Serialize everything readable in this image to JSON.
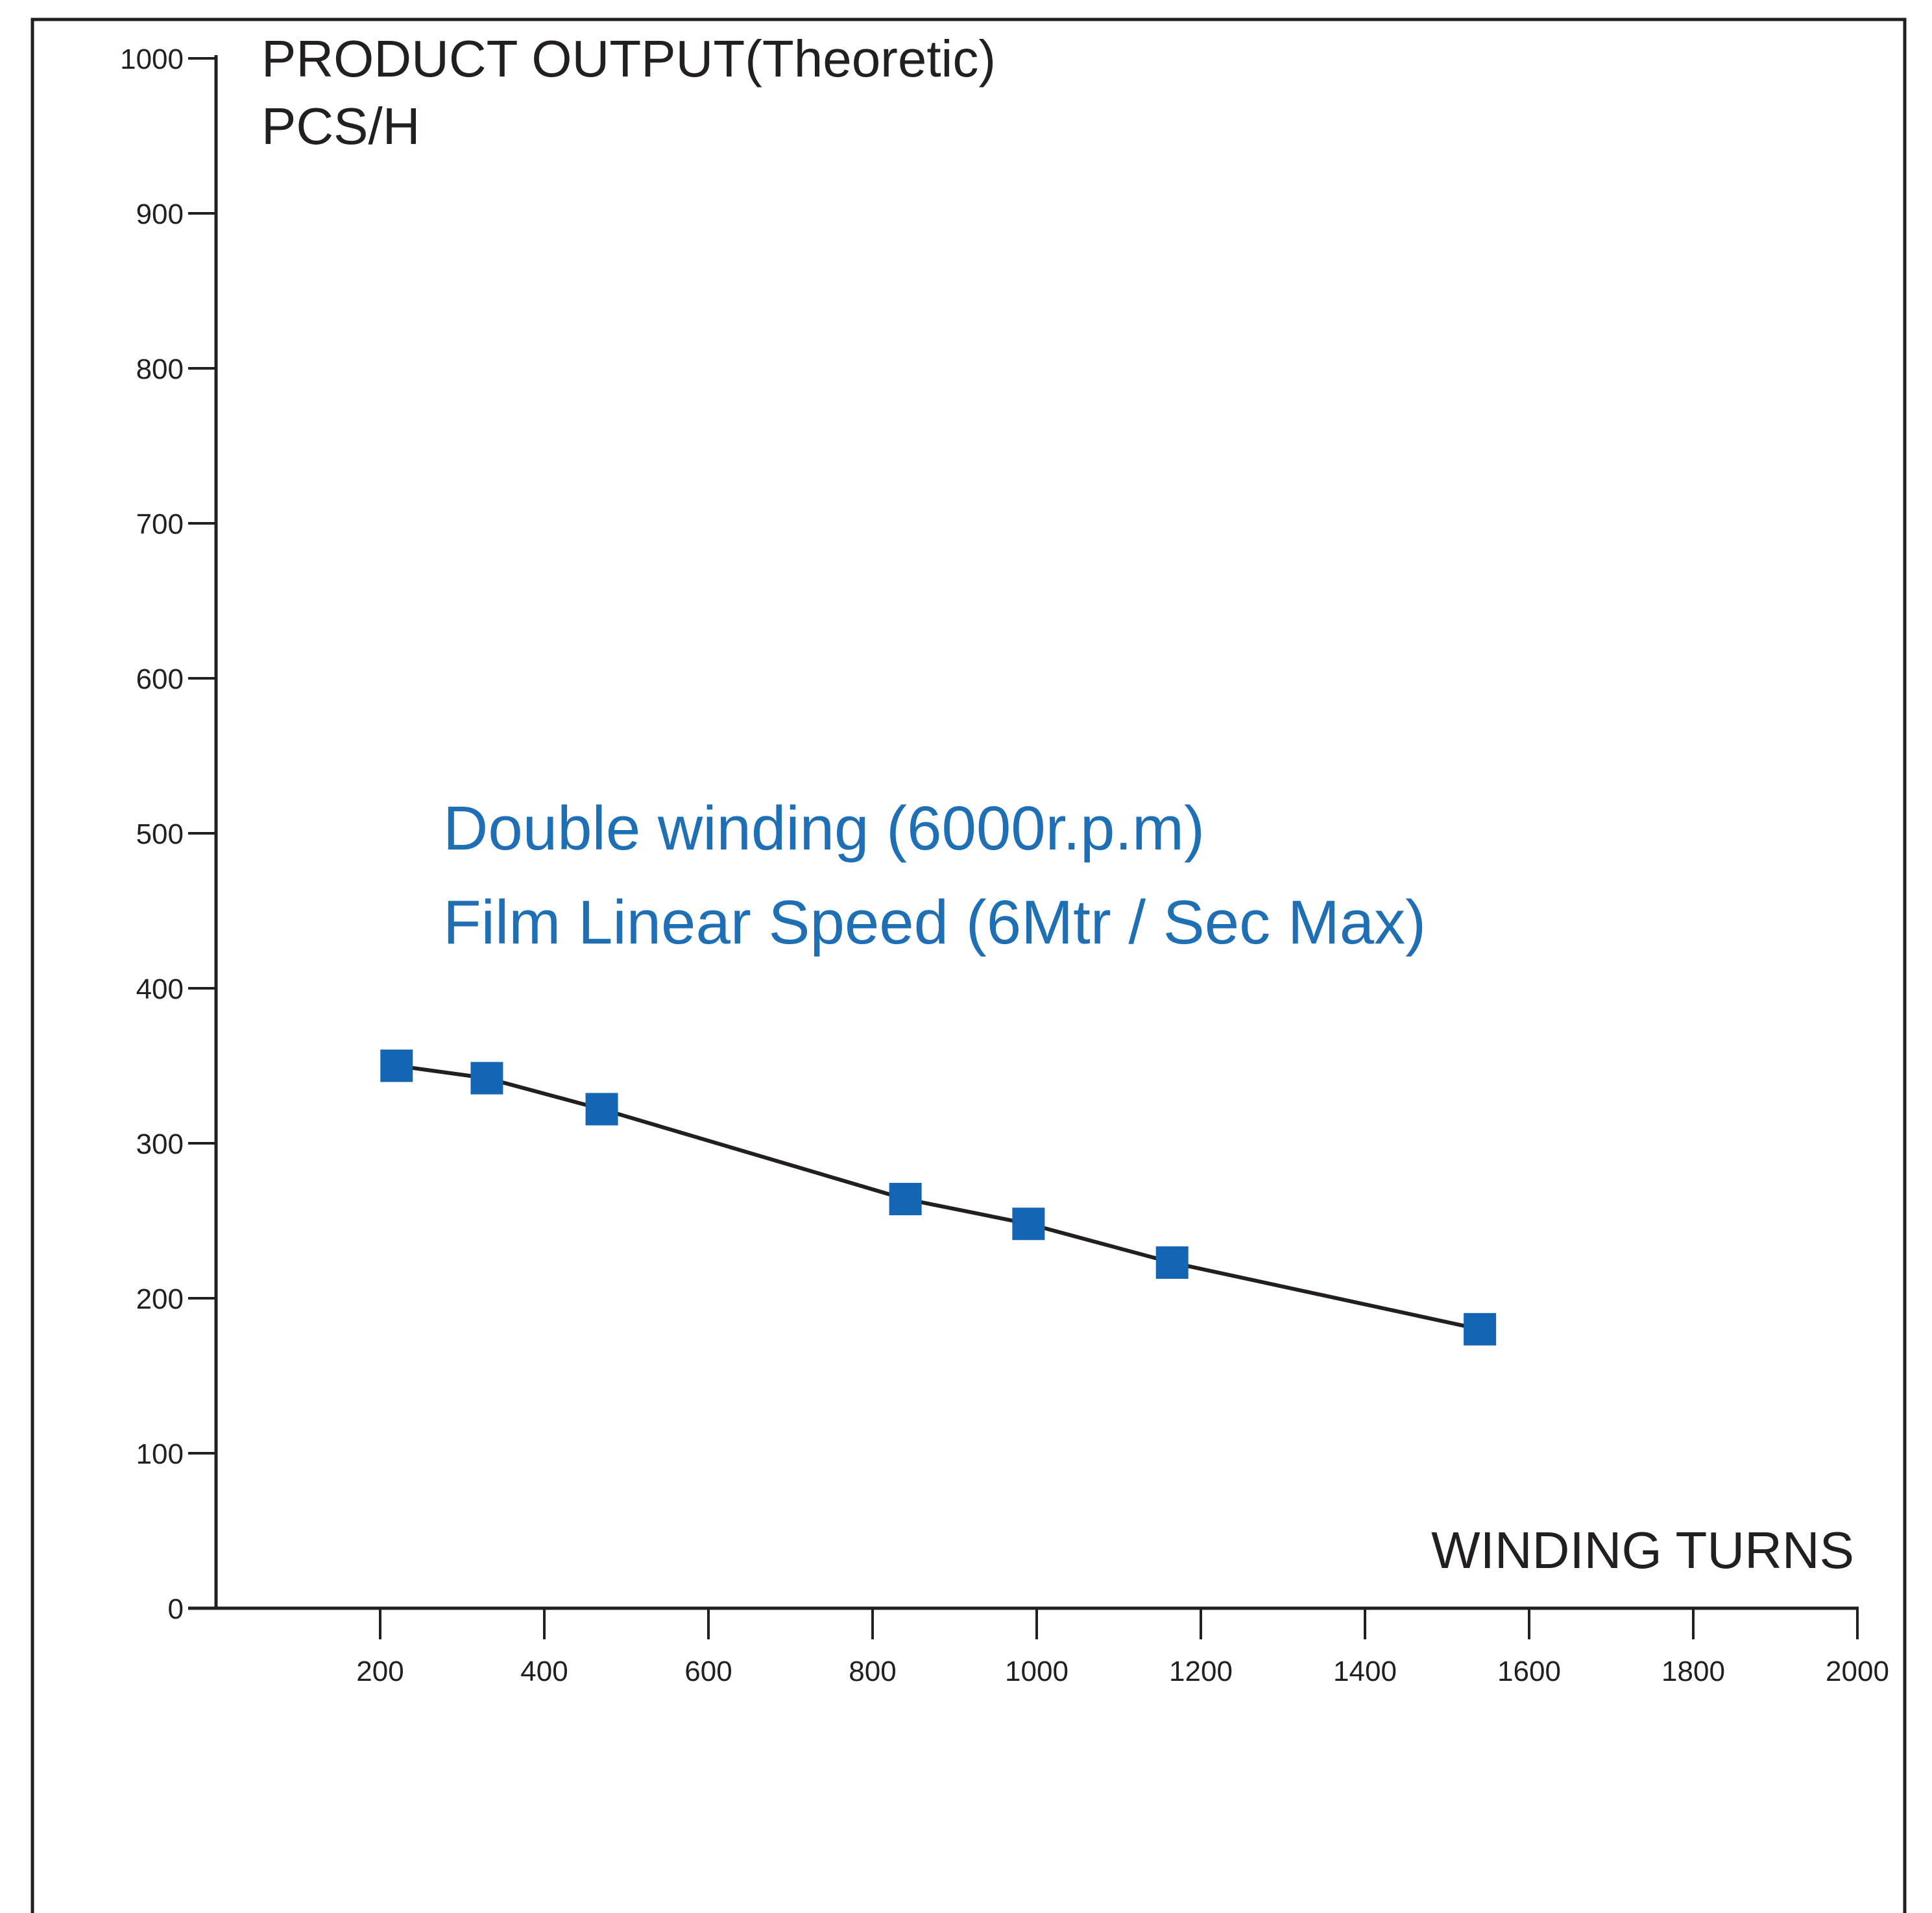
{
  "colors": {
    "background": "#ffffff",
    "frame": "#231f20",
    "axis": "#231f20",
    "line": "#231f20",
    "marker": "#1565b5",
    "annotation": "#1f6fb5"
  },
  "chart_data": {
    "type": "line",
    "title": "",
    "ylabel_lines": [
      "PRODUCT OUTPUT(Theoretic)",
      "PCS/H"
    ],
    "xlabel": "WINDING TURNS",
    "annotations": [
      "Double winding (6000r.p.m)",
      "Film Linear Speed (6Mtr / Sec Max)"
    ],
    "xlim": [
      0,
      2000
    ],
    "ylim": [
      0,
      1000
    ],
    "x_ticks": [
      "200",
      "400",
      "600",
      "800",
      "1000",
      "1200",
      "1400",
      "1600",
      "1800",
      "2000"
    ],
    "y_ticks": [
      "0",
      "100",
      "200",
      "300",
      "400",
      "500",
      "600",
      "700",
      "800",
      "900",
      "1000"
    ],
    "grid": false,
    "marker": "square",
    "series": [
      {
        "x": [
          220,
          330,
          470,
          840,
          990,
          1165,
          1540
        ],
        "y": [
          350,
          342,
          322,
          264,
          248,
          223,
          180
        ]
      }
    ]
  }
}
